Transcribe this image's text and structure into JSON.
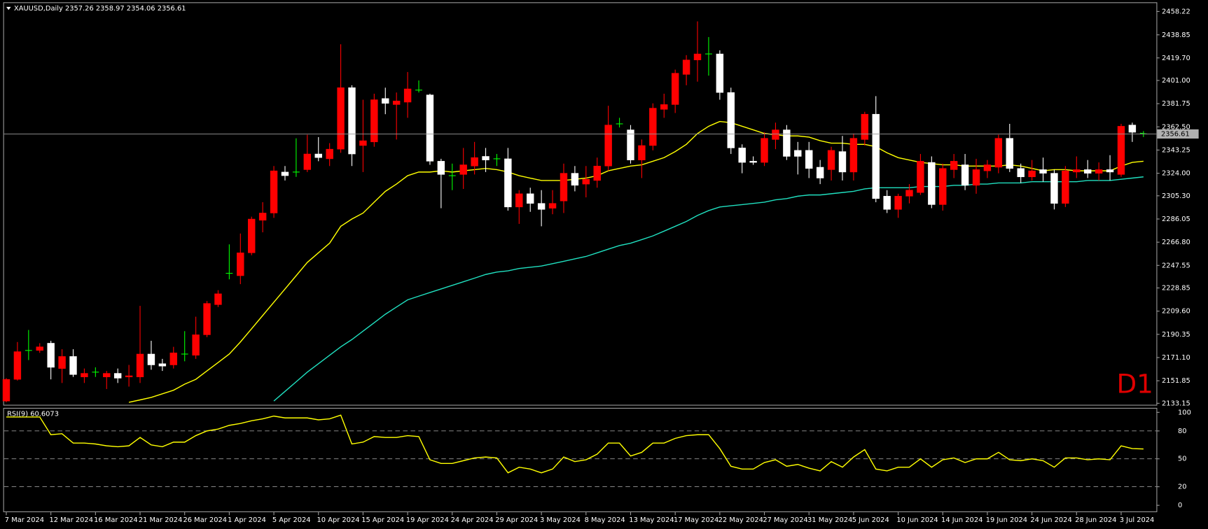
{
  "chart_data": [
    {
      "type": "candlestick",
      "title": "XAUUSD,Daily",
      "annotation": "D1",
      "up_color": "#ff0000",
      "down_color": "#ffffff",
      "doji_color": "#00ff00",
      "categories": [
        "7 Mar 2024",
        null,
        null,
        null,
        "12 Mar 2024",
        null,
        null,
        null,
        "16 Mar 2024",
        null,
        null,
        null,
        "21 Mar 2024",
        null,
        null,
        null,
        "26 Mar 2024",
        null,
        null,
        null,
        "1 Apr 2024",
        null,
        null,
        null,
        "5 Apr 2024",
        null,
        null,
        null,
        "10 Apr 2024",
        null,
        null,
        null,
        "15 Apr 2024",
        null,
        null,
        null,
        "19 Apr 2024",
        null,
        null,
        null,
        "24 Apr 2024",
        null,
        null,
        null,
        "29 Apr 2024",
        null,
        null,
        null,
        "3 May 2024",
        null,
        null,
        null,
        "8 May 2024",
        null,
        null,
        null,
        "13 May 2024",
        null,
        null,
        null,
        "17 May 2024",
        null,
        null,
        null,
        "22 May 2024",
        null,
        null,
        null,
        "27 May 2024",
        null,
        null,
        null,
        "31 May 2024",
        null,
        null,
        null,
        "5 Jun 2024",
        null,
        null,
        null,
        "10 Jun 2024",
        null,
        null,
        null,
        "14 Jun 2024",
        null,
        null,
        null,
        "19 Jun 2024",
        null,
        null,
        null,
        "24 Jun 2024",
        null,
        null,
        null,
        "28 Jun 2024",
        null,
        null,
        null,
        "3 Jul 2024",
        null,
        null
      ],
      "open": [
        2135,
        2153,
        2177,
        2177,
        2183,
        2162,
        2172,
        2155,
        2159,
        2155,
        2158,
        2155,
        2155,
        2174,
        2166,
        2165,
        2174,
        2173,
        2190,
        2215,
        2241,
        2239,
        2258,
        2285,
        2291,
        2325,
        2325,
        2327,
        2340,
        2336,
        2344,
        2395,
        2347,
        2350,
        2386,
        2381,
        2383,
        2393,
        2389,
        2334,
        2322,
        2323,
        2330,
        2338,
        2336,
        2336,
        2296,
        2307,
        2299,
        2295,
        2301,
        2324,
        2315,
        2318,
        2330,
        2365,
        2360,
        2335,
        2347,
        2377,
        2381,
        2406,
        2418,
        2423,
        2423,
        2391,
        2345,
        2334,
        2333,
        2352,
        2360,
        2343,
        2343,
        2329,
        2327,
        2342,
        2325,
        2352,
        2373,
        2305,
        2294,
        2305,
        2308,
        2333,
        2298,
        2327,
        2331,
        2314,
        2326,
        2329,
        2353,
        2328,
        2321,
        2327,
        2324,
        2299,
        2325,
        2327,
        2324,
        2327,
        2323,
        2364,
        2357.26
      ],
      "high": [
        2154,
        2184,
        2194,
        2183,
        2185,
        2178,
        2178,
        2162,
        2163,
        2160,
        2162,
        2165,
        2214,
        2185,
        2170,
        2180,
        2193,
        2205,
        2218,
        2227,
        2265,
        2274,
        2288,
        2300,
        2330,
        2330,
        2353,
        2356,
        2354,
        2349,
        2431,
        2397,
        2385,
        2390,
        2395,
        2391,
        2408,
        2401,
        2390,
        2336,
        2332,
        2345,
        2350,
        2345,
        2340,
        2345,
        2310,
        2312,
        2310,
        2310,
        2332,
        2330,
        2330,
        2337,
        2380,
        2370,
        2364,
        2352,
        2382,
        2390,
        2410,
        2422,
        2450,
        2437,
        2426,
        2395,
        2348,
        2338,
        2358,
        2366,
        2364,
        2350,
        2350,
        2335,
        2346,
        2355,
        2357,
        2375,
        2388,
        2310,
        2307,
        2315,
        2340,
        2338,
        2332,
        2340,
        2340,
        2336,
        2335,
        2356,
        2365,
        2332,
        2335,
        2337,
        2327,
        2330,
        2338,
        2335,
        2333,
        2339,
        2365,
        2366,
        2358.97
      ],
      "low": [
        2134,
        2152,
        2169,
        2175,
        2153,
        2150,
        2155,
        2150,
        2155,
        2145,
        2150,
        2147,
        2150,
        2161,
        2160,
        2162,
        2168,
        2170,
        2188,
        2213,
        2236,
        2232,
        2256,
        2275,
        2287,
        2318,
        2321,
        2325,
        2334,
        2330,
        2341,
        2330,
        2325,
        2346,
        2373,
        2352,
        2370,
        2391,
        2331,
        2295,
        2310,
        2311,
        2323,
        2325,
        2330,
        2293,
        2282,
        2292,
        2280,
        2290,
        2291,
        2309,
        2304,
        2312,
        2326,
        2362,
        2332,
        2320,
        2343,
        2370,
        2374,
        2397,
        2400,
        2405,
        2385,
        2340,
        2324,
        2331,
        2330,
        2344,
        2335,
        2323,
        2320,
        2315,
        2318,
        2318,
        2318,
        2347,
        2300,
        2291,
        2287,
        2299,
        2306,
        2295,
        2293,
        2320,
        2310,
        2307,
        2320,
        2324,
        2325,
        2316,
        2318,
        2317,
        2294,
        2296,
        2320,
        2320,
        2318,
        2318,
        2321,
        2350,
        2354.06
      ],
      "close": [
        2153,
        2176,
        2177,
        2180,
        2163,
        2172,
        2157,
        2158,
        2159,
        2158,
        2154,
        2156,
        2174,
        2165,
        2164,
        2175,
        2174,
        2190,
        2216,
        2224,
        2241,
        2258,
        2286,
        2291,
        2326,
        2322,
        2325,
        2340,
        2337,
        2344,
        2395,
        2340,
        2351,
        2385,
        2382,
        2384,
        2394,
        2393,
        2334,
        2323,
        2322,
        2331,
        2337,
        2335,
        2336,
        2296,
        2307,
        2299,
        2294,
        2299,
        2324,
        2314,
        2319,
        2330,
        2364,
        2365,
        2335,
        2347,
        2378,
        2381,
        2407,
        2418,
        2423,
        2423,
        2391,
        2345,
        2333,
        2333,
        2353,
        2360,
        2338,
        2338,
        2328,
        2320,
        2343,
        2325,
        2353,
        2373,
        2303,
        2294,
        2305,
        2310,
        2334,
        2298,
        2328,
        2334,
        2314,
        2327,
        2331,
        2353,
        2328,
        2321,
        2326,
        2324,
        2299,
        2326,
        2327,
        2324,
        2327,
        2325,
        2363,
        2358,
        2356.61
      ],
      "overlays": [
        {
          "color": "#ffff00",
          "values": [
            null,
            null,
            null,
            null,
            null,
            null,
            null,
            null,
            null,
            null,
            null,
            2134,
            2136,
            2138,
            2141,
            2144,
            2149,
            2153,
            2160,
            2167,
            2174,
            2184,
            2195,
            2206,
            2217,
            2228,
            2239,
            2250,
            2258,
            2266,
            2280,
            2286,
            2291,
            2300,
            2309,
            2315,
            2322,
            2325,
            2325,
            2326,
            2325,
            2326,
            2327,
            2328,
            2327,
            2325,
            2322,
            2320,
            2318,
            2318,
            2318,
            2319,
            2320,
            2322,
            2326,
            2328,
            2330,
            2331,
            2334,
            2337,
            2342,
            2348,
            2357,
            2363,
            2367,
            2366,
            2363,
            2360,
            2357,
            2356,
            2355,
            2355,
            2354,
            2351,
            2349,
            2349,
            2348,
            2348,
            2346,
            2341,
            2337,
            2335,
            2333,
            2332,
            2331,
            2331,
            2330,
            2330,
            2330,
            2330,
            2331,
            2330,
            2328,
            2326,
            2327,
            2327,
            2326,
            2326,
            2326,
            2326,
            2330,
            2333,
            2334
          ]
        },
        {
          "color": "#20e0c0",
          "values": [
            null,
            null,
            null,
            null,
            null,
            null,
            null,
            null,
            null,
            null,
            null,
            null,
            null,
            null,
            null,
            null,
            null,
            null,
            null,
            null,
            null,
            null,
            null,
            null,
            2135,
            2143,
            2151,
            2159,
            2166,
            2173,
            2180,
            2186,
            2193,
            2200,
            2207,
            2213,
            2219,
            2222,
            2225,
            2228,
            2231,
            2234,
            2237,
            2240,
            2242,
            2243,
            2245,
            2246,
            2247,
            2249,
            2251,
            2253,
            2255,
            2258,
            2261,
            2264,
            2266,
            2269,
            2272,
            2276,
            2280,
            2284,
            2289,
            2293,
            2296,
            2297,
            2298,
            2299,
            2300,
            2302,
            2303,
            2305,
            2306,
            2306,
            2307,
            2308,
            2309,
            2311,
            2312,
            2312,
            2312,
            2312,
            2313,
            2313,
            2313,
            2314,
            2314,
            2315,
            2315,
            2316,
            2316,
            2316,
            2317,
            2317,
            2317,
            2317,
            2317,
            2318,
            2318,
            2318,
            2319,
            2320,
            2321
          ]
        }
      ],
      "ylim": [
        2131.9,
        2465.2
      ],
      "yticks": [
        2458.22,
        2438.85,
        {
          "value": 2419.7,
          "label": "2419.70"
        },
        {
          "value": 2401,
          "label": "2401.00"
        },
        2381.75,
        {
          "value": 2362.5,
          "label": "2362.50"
        },
        2343.25,
        {
          "value": 2324,
          "label": "2324.00"
        },
        {
          "value": 2305.3,
          "label": "2305.30"
        },
        2286.05,
        {
          "value": 2266.8,
          "label": "2266.80"
        },
        2247.55,
        2228.85,
        {
          "value": 2209.6,
          "label": "2209.60"
        },
        2190.35,
        {
          "value": 2171.1,
          "label": "2171.10"
        },
        2151.85,
        2133.15
      ]
    },
    {
      "type": "line",
      "title": "RSI(9)",
      "color": "#ffff00",
      "values": [
        95,
        95,
        95,
        95,
        76,
        77,
        67,
        67,
        66,
        64,
        63,
        64,
        73,
        65,
        63,
        68,
        68,
        75,
        80,
        82,
        86,
        88,
        91,
        93,
        96,
        94,
        94,
        94,
        92,
        93,
        97,
        66,
        68,
        74,
        73,
        73,
        75,
        74,
        49,
        45,
        45,
        48,
        51,
        52,
        51,
        35,
        41,
        39,
        35,
        39,
        52,
        47,
        49,
        55,
        67,
        67,
        53,
        57,
        67,
        67,
        72,
        75,
        76,
        76,
        61,
        42,
        39,
        39,
        46,
        49,
        42,
        44,
        40,
        37,
        47,
        41,
        52,
        60,
        39,
        37,
        41,
        41,
        50,
        41,
        49,
        51,
        46,
        50,
        50,
        57,
        49,
        48,
        50,
        48,
        41,
        51,
        51,
        49,
        50,
        49,
        64,
        61,
        60.6073
      ],
      "ylim": [
        -6.5,
        104
      ],
      "yticks": [
        100,
        80,
        50,
        20,
        0
      ]
    }
  ]
}
